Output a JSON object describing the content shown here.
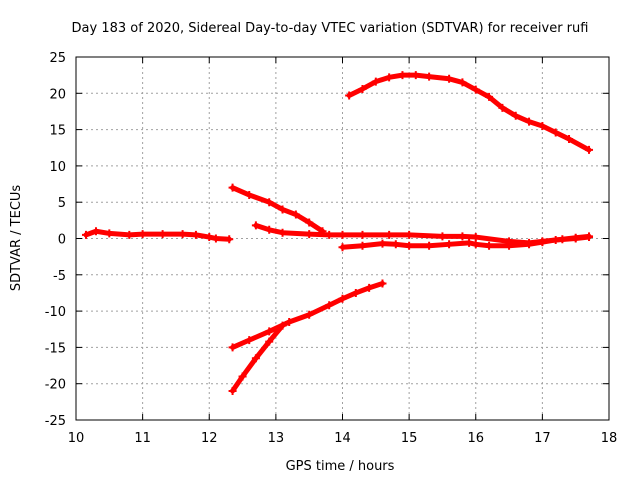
{
  "chart_data": {
    "type": "scatter",
    "title": "Day 183 of 2020, Sidereal Day-to-day VTEC variation (SDTVAR) for receiver rufi",
    "xlabel": "GPS time / hours",
    "ylabel": "SDTVAR / TECUs",
    "xlim": [
      10,
      18
    ],
    "ylim": [
      -25,
      25
    ],
    "xticks": [
      "10",
      "11",
      "12",
      "13",
      "14",
      "15",
      "16",
      "17",
      "18"
    ],
    "yticks": [
      "25",
      "20",
      "15",
      "10",
      "5",
      "0",
      "-5",
      "-10",
      "-15",
      "-20",
      "-25"
    ],
    "grid": true,
    "marker": "plus",
    "color": "#ff0000",
    "series": [
      {
        "x": [
          10.15,
          10.3,
          10.5,
          10.8,
          11.0,
          11.3,
          11.6,
          11.8,
          12.0,
          12.1,
          12.3
        ],
        "y": [
          0.5,
          1.0,
          0.7,
          0.5,
          0.6,
          0.6,
          0.6,
          0.5,
          0.2,
          0.0,
          -0.1
        ]
      },
      {
        "x": [
          12.35,
          12.6,
          12.9,
          13.1,
          13.3,
          13.5,
          13.7
        ],
        "y": [
          7.0,
          6.0,
          5.0,
          4.0,
          3.3,
          2.2,
          1.0
        ]
      },
      {
        "x": [
          12.7,
          12.9,
          13.1,
          13.5,
          13.8,
          14.0,
          14.3,
          14.7,
          15.0,
          15.5,
          15.8,
          16.0,
          16.5,
          16.8,
          17.0,
          17.3,
          17.5,
          17.7
        ],
        "y": [
          1.8,
          1.2,
          0.8,
          0.6,
          0.5,
          0.5,
          0.5,
          0.5,
          0.5,
          0.3,
          0.3,
          0.2,
          -0.4,
          -0.6,
          -0.4,
          -0.1,
          0.1,
          0.3
        ]
      },
      {
        "x": [
          14.0,
          14.3,
          14.6,
          14.8,
          15.0,
          15.3,
          15.6,
          15.9,
          16.0,
          16.2,
          16.5,
          16.8,
          17.0,
          17.2,
          17.5,
          17.7
        ],
        "y": [
          -1.2,
          -1.0,
          -0.7,
          -0.8,
          -1.0,
          -1.0,
          -0.8,
          -0.6,
          -0.8,
          -1.0,
          -1.0,
          -0.8,
          -0.5,
          -0.2,
          0.0,
          0.2
        ]
      },
      {
        "x": [
          14.1,
          14.3,
          14.5,
          14.7,
          14.9,
          15.1,
          15.3,
          15.6,
          15.8,
          16.0,
          16.2,
          16.4,
          16.6,
          16.8,
          17.0,
          17.2,
          17.4,
          17.7
        ],
        "y": [
          19.7,
          20.6,
          21.6,
          22.2,
          22.5,
          22.5,
          22.3,
          22.0,
          21.5,
          20.5,
          19.5,
          18.0,
          16.9,
          16.1,
          15.5,
          14.6,
          13.7,
          12.2
        ]
      },
      {
        "x": [
          12.35,
          12.6,
          12.9,
          13.2,
          13.5,
          13.8,
          14.0,
          14.2,
          14.4,
          14.6
        ],
        "y": [
          -15.0,
          -14.0,
          -12.8,
          -11.5,
          -10.5,
          -9.2,
          -8.3,
          -7.5,
          -6.8,
          -6.2
        ]
      },
      {
        "x": [
          12.35,
          12.5,
          12.7,
          12.9,
          13.1
        ],
        "y": [
          -21.0,
          -19.0,
          -16.5,
          -14.2,
          -12.0
        ]
      }
    ]
  }
}
